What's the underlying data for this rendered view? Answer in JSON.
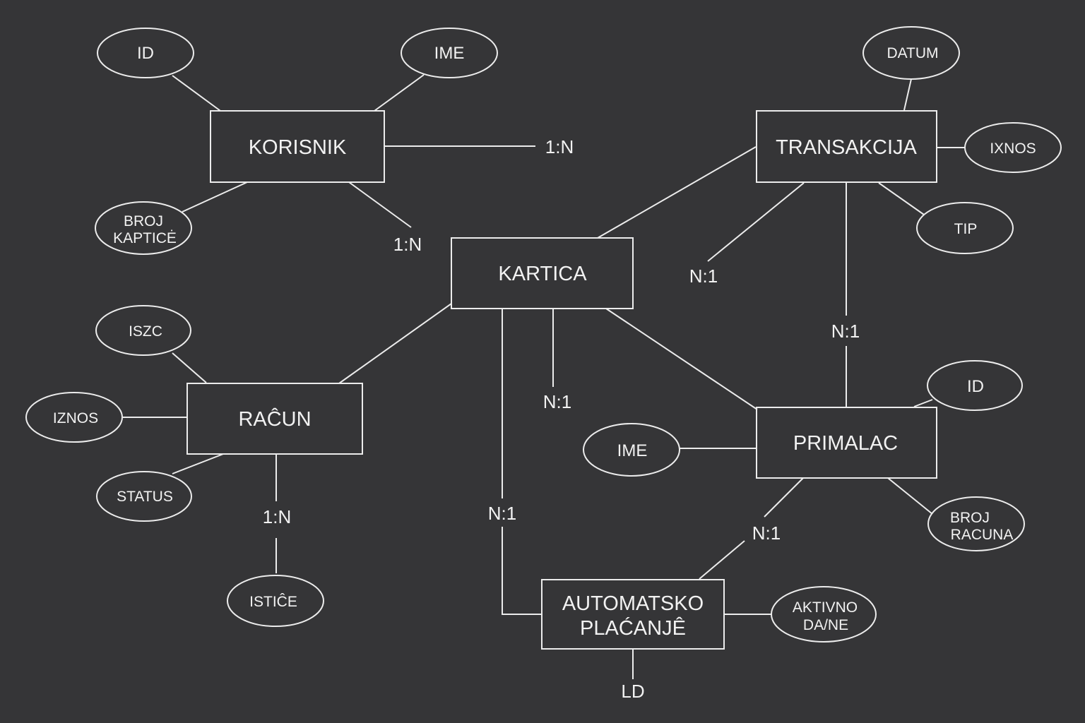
{
  "entities": {
    "korisnik": "KORISNIK",
    "transakcija": "TRANSAKCIJA",
    "kartica": "KARTICA",
    "racun": "RAĈUN",
    "primalac": "PRIMALAC",
    "automatsko_line1": "AUTOMATSKO",
    "automatsko_line2": "PLAĆANJÊ"
  },
  "attributes": {
    "korisnik_id": "ID",
    "korisnik_ime": "IME",
    "korisnik_broj_line1": "BROJ",
    "korisnik_broj_line2": "KAPTICĖ",
    "transakcija_datum": "DATUM",
    "transakcija_iznos": "IXNOS",
    "transakcija_tip": "TIP",
    "racun_iszc": "ISZC",
    "racun_iznos": "IZNOS",
    "racun_status": "STATUS",
    "racun_istice": "ISTIĈE",
    "primalac_id": "ID",
    "primalac_ime": "IME",
    "primalac_broj_line1": "BROJ",
    "primalac_broj_line2": "RACUNA",
    "automatsko_aktivno_line1": "AKTIVNO",
    "automatsko_aktivno_line2": "DA/NE",
    "automatsko_ld": "LD"
  },
  "cardinalities": {
    "korisnik_right": "1:N",
    "korisnik_kartica": "1:N",
    "transakcija_kartica": "N:1",
    "transakcija_primalac": "N:1",
    "kartica_down": "N:1",
    "kartica_automatsko": "N:1",
    "racun_istice": "1:N",
    "primalac_automatsko": "N:1"
  }
}
